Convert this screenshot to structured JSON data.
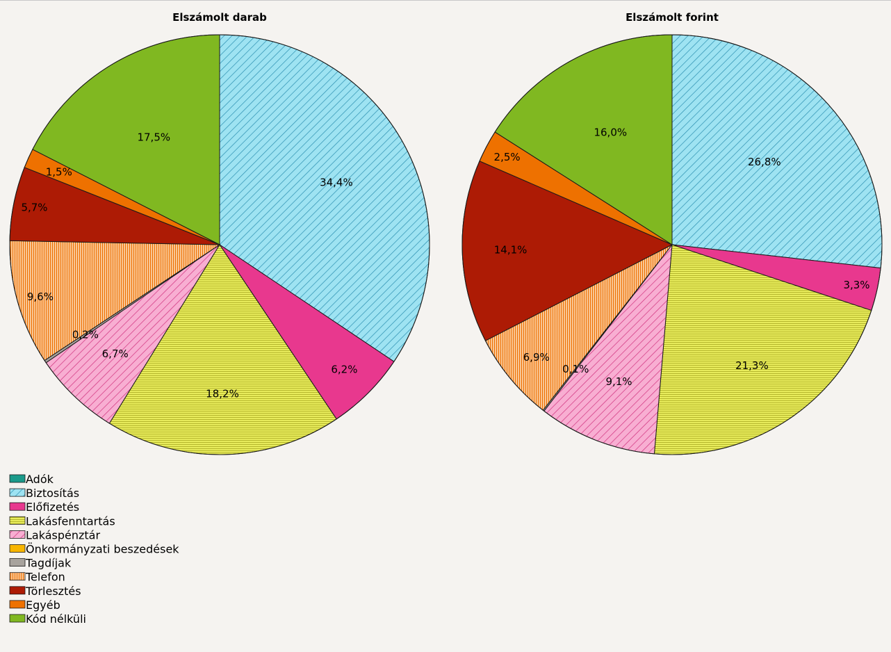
{
  "colors": {
    "Adók": "#1a9a8a",
    "Biztosítás": "#9ee3f2",
    "Előfizetés": "#e8388e",
    "Lakásfenntartás": "#e8ec5c",
    "Lakáspénztár": "#f8aed2",
    "Önkormányzati beszedések": "#f7b500",
    "Tagdíjak": "#a8a39d",
    "Telefon": "#f28a28",
    "Törlesztés": "#ad1b05",
    "Egyéb": "#ee7100",
    "Kód nélküli": "#80b821"
  },
  "chart_data": [
    {
      "type": "pie",
      "title": "Elszámolt darab",
      "categories": [
        "Adók",
        "Biztosítás",
        "Előfizetés",
        "Lakásfenntartás",
        "Lakáspénztár",
        "Önkormányzati beszedések",
        "Tagdíjak",
        "Telefon",
        "Törlesztés",
        "Egyéb",
        "Kód nélküli"
      ],
      "values": [
        0.0,
        34.4,
        6.2,
        18.2,
        6.7,
        0.0,
        0.2,
        9.6,
        5.7,
        1.5,
        17.5
      ],
      "labels": [
        "",
        "34,4%",
        "6,2%",
        "18,2%",
        "6,7%",
        "",
        "0,2%",
        "9,6%",
        "5,7%",
        "1,5%",
        "17,5%"
      ]
    },
    {
      "type": "pie",
      "title": "Elszámolt forint",
      "categories": [
        "Adók",
        "Biztosítás",
        "Előfizetés",
        "Lakásfenntartás",
        "Lakáspénztár",
        "Önkormányzati beszedések",
        "Tagdíjak",
        "Telefon",
        "Törlesztés",
        "Egyéb",
        "Kód nélküli"
      ],
      "values": [
        0.0,
        26.8,
        3.3,
        21.3,
        9.1,
        0.0,
        0.1,
        6.9,
        14.1,
        2.5,
        16.0
      ],
      "labels": [
        "",
        "26,8%",
        "3,3%",
        "21,3%",
        "9,1%",
        "",
        "0,1%",
        "6,9%",
        "14,1%",
        "2,5%",
        "16,0%"
      ]
    }
  ],
  "legend": {
    "placement": "bottom-left",
    "items": [
      "Adók",
      "Biztosítás",
      "Előfizetés",
      "Lakásfenntartás",
      "Lakáspénztár",
      "Önkormányzati beszedések",
      "Tagdíjak",
      "Telefon",
      "Törlesztés",
      "Egyéb",
      "Kód nélküli"
    ]
  }
}
